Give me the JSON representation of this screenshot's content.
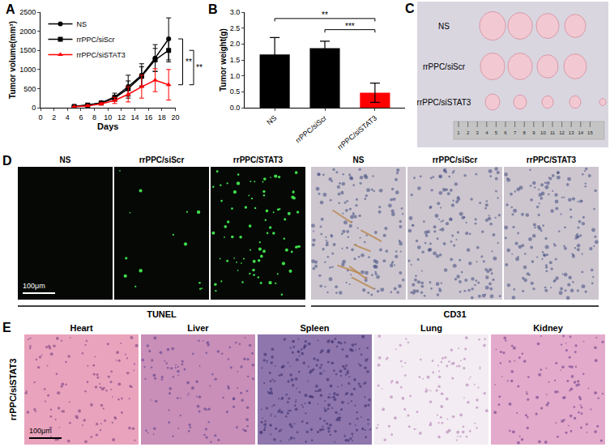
{
  "chart_data": [
    {
      "panel": "A",
      "type": "line",
      "x": [
        5,
        7,
        9,
        11,
        13,
        15,
        17,
        19
      ],
      "xlabel": "Days",
      "ylabel": "Tumor volume(mm³)",
      "xlim": [
        0,
        20
      ],
      "xticks": [
        0,
        2,
        4,
        6,
        8,
        10,
        12,
        14,
        16,
        18,
        20
      ],
      "ylim": [
        0,
        2500
      ],
      "yticks": [
        0,
        500,
        1000,
        1500,
        2000,
        2500
      ],
      "legend": "top-left",
      "grid": false,
      "series": [
        {
          "name": "NS",
          "color": "#000000",
          "marker": "circle",
          "values": [
            30,
            60,
            130,
            280,
            550,
            850,
            1300,
            1800
          ],
          "error": [
            10,
            20,
            30,
            100,
            300,
            300,
            350,
            550
          ]
        },
        {
          "name": "rrPPC/siScr",
          "color": "#000000",
          "marker": "square",
          "values": [
            30,
            70,
            120,
            250,
            500,
            820,
            1250,
            1500
          ],
          "error": [
            10,
            20,
            30,
            80,
            200,
            250,
            300,
            300
          ]
        },
        {
          "name": "rrPPC/siSTAT3",
          "color": "#ff0000",
          "marker": "triangle-up",
          "values": [
            25,
            50,
            100,
            190,
            350,
            550,
            720,
            600
          ],
          "error": [
            5,
            15,
            30,
            80,
            200,
            300,
            300,
            400
          ]
        }
      ],
      "significance": [
        {
          "from": "NS",
          "to": "rrPPC/siSTAT3",
          "text": "**"
        },
        {
          "from": "rrPPC/siScr",
          "to": "rrPPC/siSTAT3",
          "text": "**"
        }
      ]
    },
    {
      "panel": "B",
      "type": "bar",
      "categories": [
        "NS",
        "rrPPC/siScr",
        "rrPPC/siSTAT3"
      ],
      "values": [
        1.67,
        1.87,
        0.47
      ],
      "error": [
        0.53,
        0.22,
        0.3
      ],
      "colors": [
        "#000000",
        "#000000",
        "#ff0000"
      ],
      "ylabel": "Tumor weight(g)",
      "ylim": [
        0,
        3
      ],
      "yticks": [
        {
          "value": 0,
          "label": "0.0"
        },
        {
          "value": 0.5,
          "label": "0.5"
        },
        {
          "value": 1,
          "label": "1.0"
        },
        {
          "value": 1.5,
          "label": "1.5"
        },
        {
          "value": 2,
          "label": "2.0"
        },
        {
          "value": 2.5,
          "label": "2.5"
        },
        {
          "value": 3,
          "label": "3.0"
        }
      ],
      "grid": false,
      "significance": [
        {
          "from": "NS",
          "to": "rrPPC/siSTAT3",
          "y": 2.8,
          "text": "**"
        },
        {
          "from": "rrPPC/siScr",
          "to": "rrPPC/siSTAT3",
          "y": 2.45,
          "text": "***"
        }
      ]
    }
  ],
  "images": {
    "C": {
      "panel": "C",
      "rows": [
        "NS",
        "rrPPC/siScr",
        "rrPPC/siSTAT3"
      ],
      "ruler_marks": [
        1,
        2,
        3,
        4,
        5,
        6,
        7,
        8,
        9,
        10,
        11,
        12,
        13,
        14,
        15
      ]
    },
    "D": {
      "panel": "D",
      "scale_bar": "100μm",
      "groups": [
        {
          "name": "TUNEL",
          "columns": [
            "NS",
            "rrPPC/siScr",
            "rrPPC/STAT3"
          ]
        },
        {
          "name": "CD31",
          "columns": [
            "NS",
            "rrPPC/siScr",
            "rrPPC/STAT3"
          ]
        }
      ]
    },
    "E": {
      "panel": "E",
      "row_label": "rrPPC/siSTAT3",
      "scale_bar": "100μm",
      "columns": [
        "Heart",
        "Liver",
        "Spleen",
        "Lung",
        "Kidney"
      ]
    }
  }
}
